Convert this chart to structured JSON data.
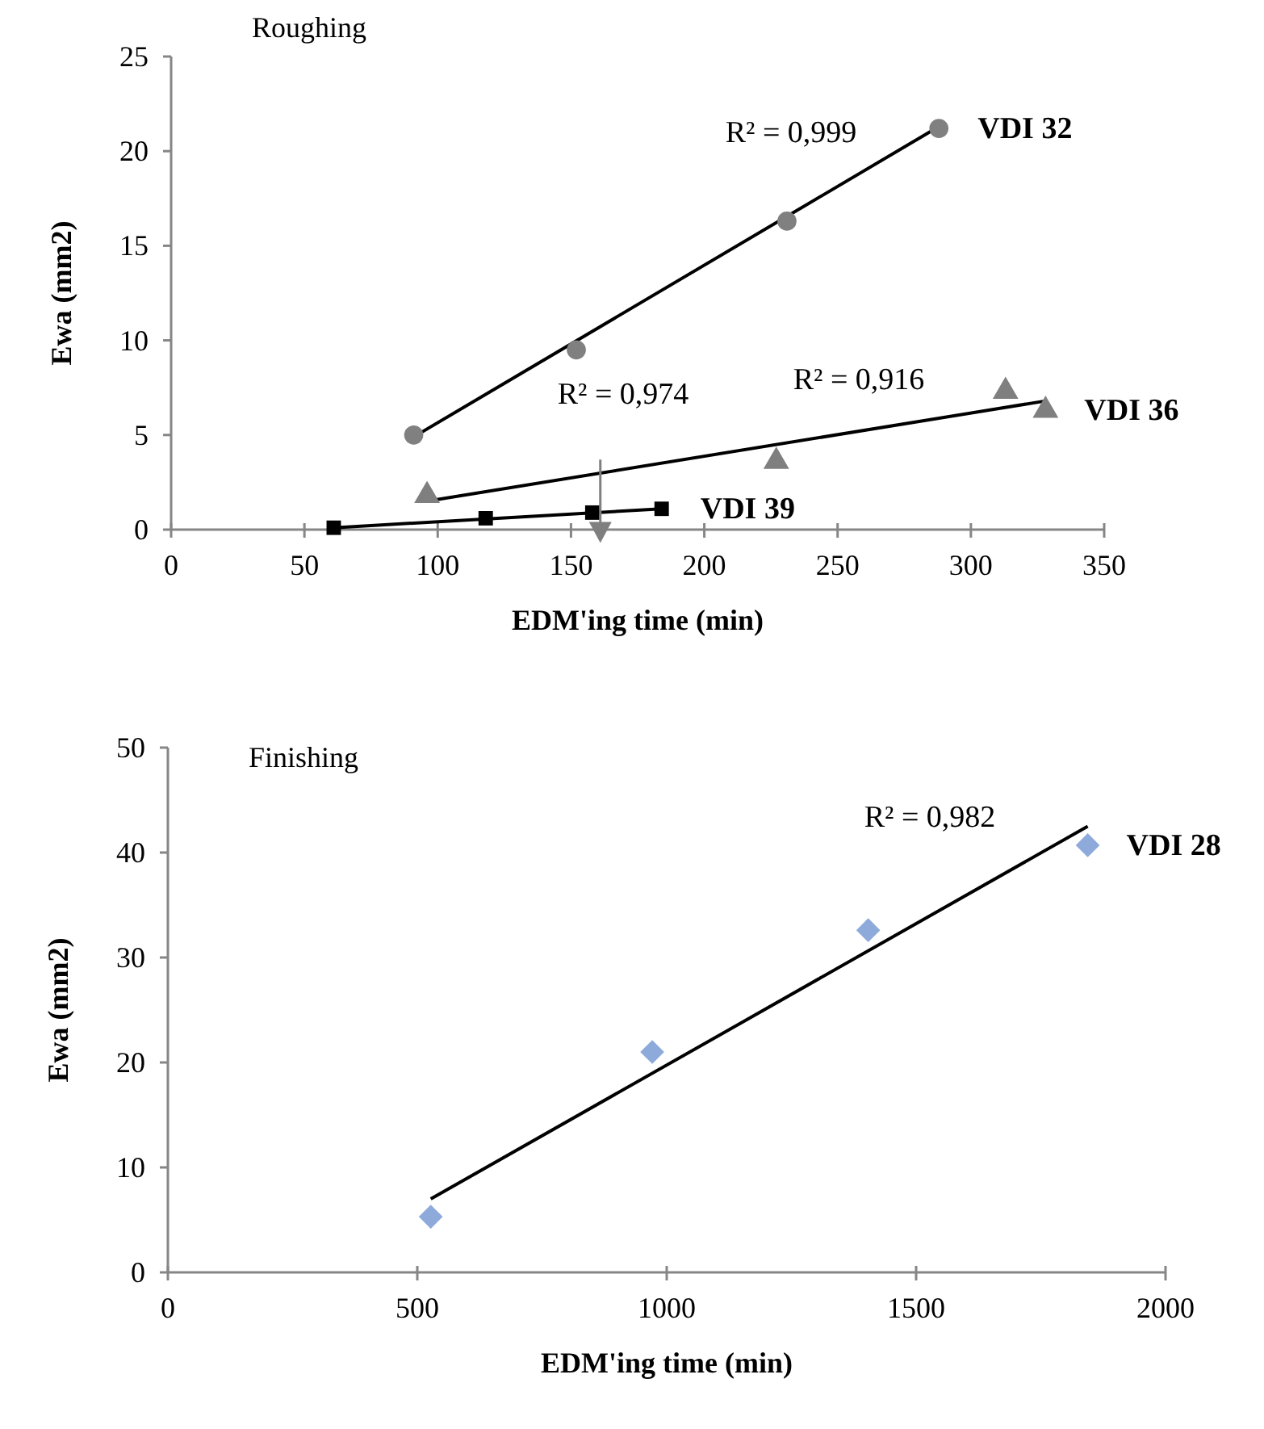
{
  "chart_data": [
    {
      "type": "scatter",
      "title": "Roughing",
      "xlabel": "EDM'ing time (min)",
      "ylabel": "Ewa (mm2)",
      "xlim": [
        0,
        350
      ],
      "ylim": [
        0,
        25
      ],
      "xticks": [
        0,
        50,
        100,
        150,
        200,
        250,
        300,
        350
      ],
      "yticks": [
        0,
        5,
        10,
        15,
        20,
        25
      ],
      "grid": false,
      "legend": false,
      "series": [
        {
          "name": "VDI 32",
          "type": "scatter",
          "marker": "circle",
          "color": "#808080",
          "x": [
            91,
            152,
            231,
            288
          ],
          "values": [
            5.0,
            9.5,
            16.3,
            21.2
          ]
        },
        {
          "type": "line",
          "color": "#000000",
          "x": [
            91,
            288
          ],
          "values": [
            4.9,
            21.3
          ]
        },
        {
          "name": "VDI 36",
          "type": "scatter",
          "marker": "triangle",
          "color": "#7f7f7f",
          "x": [
            96,
            227,
            313,
            328
          ],
          "values": [
            1.8,
            3.6,
            7.3,
            6.3
          ]
        },
        {
          "type": "line",
          "color": "#000000",
          "x": [
            96,
            328
          ],
          "values": [
            1.5,
            6.8
          ]
        },
        {
          "name": "VDI 39",
          "type": "scatter",
          "marker": "square",
          "color": "#000000",
          "x": [
            61,
            118,
            158,
            184
          ],
          "values": [
            0.1,
            0.6,
            0.9,
            1.1
          ]
        },
        {
          "type": "line",
          "color": "#000000",
          "x": [
            61,
            184
          ],
          "values": [
            0.1,
            1.1
          ]
        }
      ],
      "annotations": [
        "R² = 0,999",
        "R² = 0,974",
        "R² = 0,916"
      ]
    },
    {
      "type": "scatter",
      "title": "Finishing",
      "xlabel": "EDM'ing time (min)",
      "ylabel": "Ewa (mm2)",
      "xlim": [
        0,
        2000
      ],
      "ylim": [
        0,
        50
      ],
      "xticks": [
        0,
        500,
        1000,
        1500,
        2000
      ],
      "yticks": [
        0,
        10,
        20,
        30,
        40,
        50
      ],
      "grid": false,
      "legend": false,
      "series": [
        {
          "name": "VDI 28",
          "type": "scatter",
          "marker": "diamond",
          "color": "#8eaadb",
          "x": [
            527,
            971,
            1404,
            1844
          ],
          "values": [
            5.3,
            21.0,
            32.6,
            40.7
          ]
        },
        {
          "type": "line",
          "color": "#000000",
          "x": [
            527,
            1844
          ],
          "values": [
            7.0,
            42.5
          ]
        }
      ],
      "annotations": [
        "R² = 0,982"
      ]
    }
  ]
}
